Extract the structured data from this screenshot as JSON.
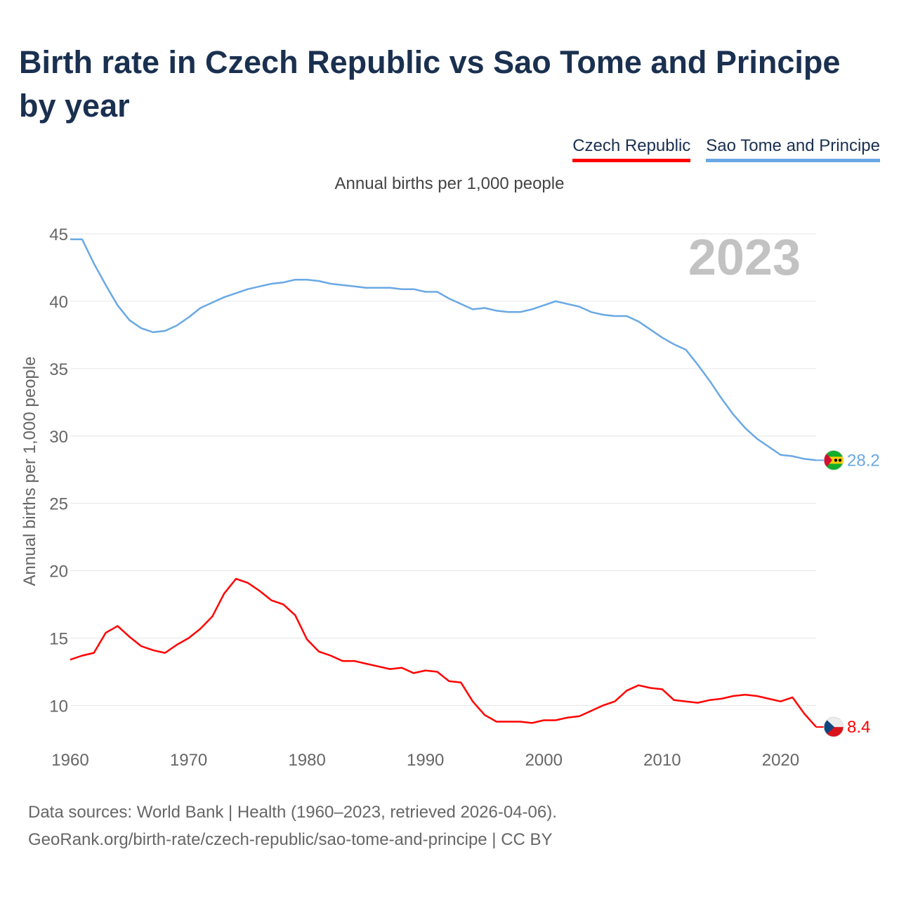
{
  "header": {
    "title": "Birth rate in Czech Republic vs Sao Tome and Principe by year",
    "subtitle": "Annual births per 1,000 people"
  },
  "legend": [
    {
      "label": "Czech Republic",
      "color": "#ff0000"
    },
    {
      "label": "Sao Tome and Principe",
      "color": "#6aa8e4"
    }
  ],
  "footer": {
    "line1": "Data sources: World Bank | Health (1960–2023, retrieved 2026-04-06).",
    "line2": "GeoRank.org/birth-rate/czech-republic/sao-tome-and-principe | CC BY"
  },
  "chart_data": {
    "type": "line",
    "title": "Birth rate in Czech Republic vs Sao Tome and Principe by year",
    "subtitle": "Annual births per 1,000 people",
    "xlabel": "",
    "ylabel": "Annual births per 1,000 people",
    "year_label": "2023",
    "xlim": [
      1960,
      2023
    ],
    "ylim": [
      7,
      45
    ],
    "x_ticks": [
      1960,
      1970,
      1980,
      1990,
      2000,
      2010,
      2020
    ],
    "y_ticks": [
      10,
      15,
      20,
      25,
      30,
      35,
      40,
      45
    ],
    "grid": true,
    "legend_position": "top-right",
    "x": [
      1960,
      1961,
      1962,
      1963,
      1964,
      1965,
      1966,
      1967,
      1968,
      1969,
      1970,
      1971,
      1972,
      1973,
      1974,
      1975,
      1976,
      1977,
      1978,
      1979,
      1980,
      1981,
      1982,
      1983,
      1984,
      1985,
      1986,
      1987,
      1988,
      1989,
      1990,
      1991,
      1992,
      1993,
      1994,
      1995,
      1996,
      1997,
      1998,
      1999,
      2000,
      2001,
      2002,
      2003,
      2004,
      2005,
      2006,
      2007,
      2008,
      2009,
      2010,
      2011,
      2012,
      2013,
      2014,
      2015,
      2016,
      2017,
      2018,
      2019,
      2020,
      2021,
      2022,
      2023
    ],
    "series": [
      {
        "name": "Czech Republic",
        "color": "#ff0000",
        "end_label": "8.4",
        "values": [
          13.4,
          13.7,
          13.9,
          15.4,
          15.9,
          15.1,
          14.4,
          14.1,
          13.9,
          14.5,
          15.0,
          15.7,
          16.6,
          18.3,
          19.4,
          19.1,
          18.5,
          17.8,
          17.5,
          16.7,
          14.9,
          14.0,
          13.7,
          13.3,
          13.3,
          13.1,
          12.9,
          12.7,
          12.8,
          12.4,
          12.6,
          12.5,
          11.8,
          11.7,
          10.3,
          9.3,
          8.8,
          8.8,
          8.8,
          8.7,
          8.9,
          8.9,
          9.1,
          9.2,
          9.6,
          10.0,
          10.3,
          11.1,
          11.5,
          11.3,
          11.2,
          10.4,
          10.3,
          10.2,
          10.4,
          10.5,
          10.7,
          10.8,
          10.7,
          10.5,
          10.3,
          10.6,
          9.4,
          8.4
        ]
      },
      {
        "name": "Sao Tome and Principe",
        "color": "#6aa8e4",
        "end_label": "28.2",
        "values": [
          44.6,
          44.6,
          42.8,
          41.2,
          39.7,
          38.6,
          38.0,
          37.7,
          37.8,
          38.2,
          38.8,
          39.5,
          39.9,
          40.3,
          40.6,
          40.9,
          41.1,
          41.3,
          41.4,
          41.6,
          41.6,
          41.5,
          41.3,
          41.2,
          41.1,
          41.0,
          41.0,
          41.0,
          40.9,
          40.9,
          40.7,
          40.7,
          40.2,
          39.8,
          39.4,
          39.5,
          39.3,
          39.2,
          39.2,
          39.4,
          39.7,
          40.0,
          39.8,
          39.6,
          39.2,
          39.0,
          38.9,
          38.9,
          38.5,
          37.9,
          37.3,
          36.8,
          36.4,
          35.3,
          34.1,
          32.8,
          31.6,
          30.6,
          29.8,
          29.2,
          28.6,
          28.5,
          28.3,
          28.2
        ]
      }
    ]
  }
}
